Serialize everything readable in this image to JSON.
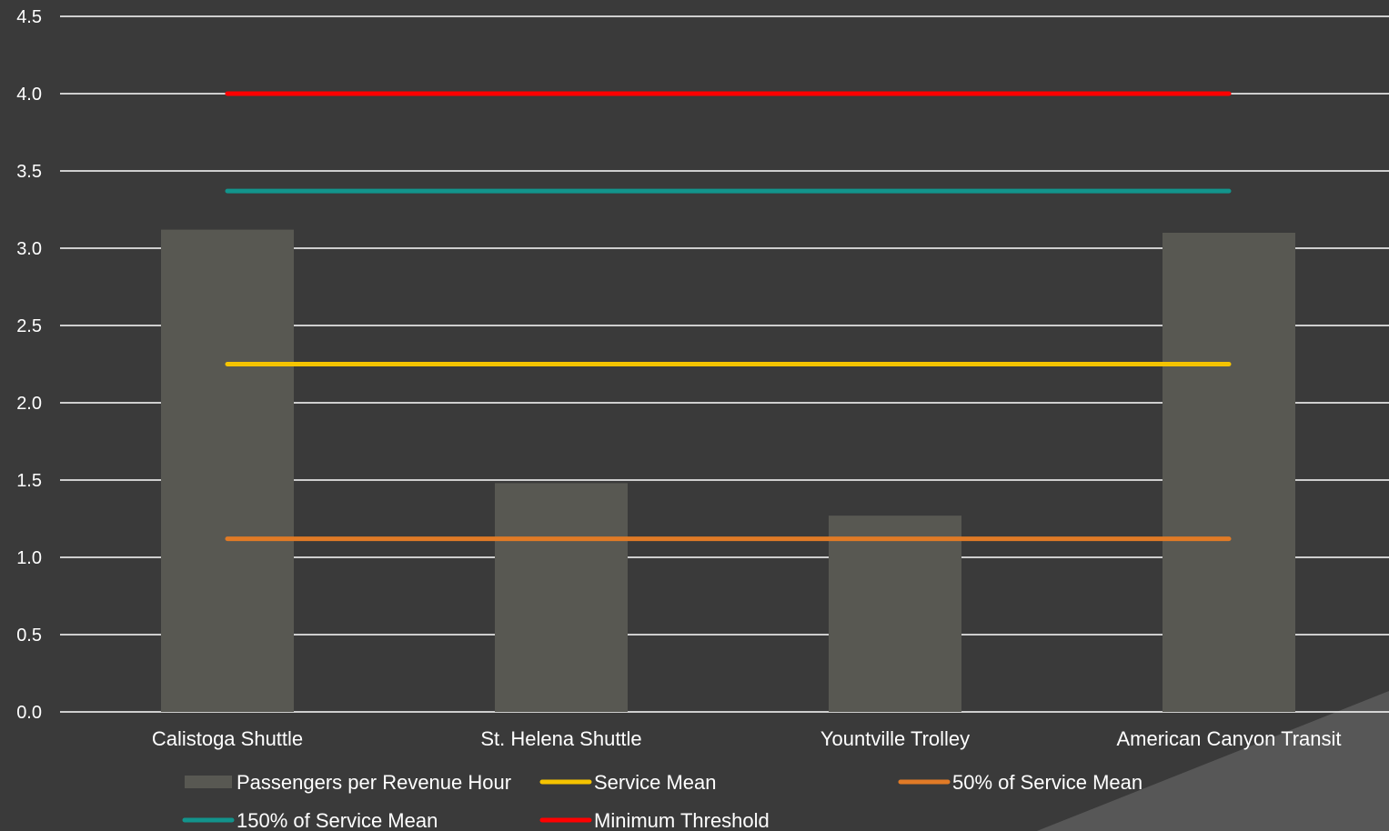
{
  "chart_data": {
    "type": "bar",
    "categories": [
      "Calistoga Shuttle",
      "St. Helena Shuttle",
      "Yountville Trolley",
      "American Canyon Transit"
    ],
    "series": [
      {
        "name": "Passengers per Revenue Hour",
        "kind": "bar",
        "color": "#585852",
        "values": [
          3.12,
          1.48,
          1.27,
          3.1
        ]
      },
      {
        "name": "Service Mean",
        "kind": "line",
        "color": "#f5c400",
        "values": [
          2.25,
          2.25,
          2.25,
          2.25
        ]
      },
      {
        "name": "50% of Service Mean",
        "kind": "line",
        "color": "#e07a26",
        "values": [
          1.12,
          1.12,
          1.12,
          1.12
        ]
      },
      {
        "name": "150% of Service Mean",
        "kind": "line",
        "color": "#12948c",
        "values": [
          3.37,
          3.37,
          3.37,
          3.37
        ]
      },
      {
        "name": "Minimum Threshold",
        "kind": "line",
        "color": "#ff0000",
        "values": [
          4.0,
          4.0,
          4.0,
          4.0
        ]
      }
    ],
    "yticks": [
      "0.0",
      "0.5",
      "1.0",
      "1.5",
      "2.0",
      "2.5",
      "3.0",
      "3.5",
      "4.0",
      "4.5"
    ],
    "ylim": [
      0,
      4.5
    ],
    "grid": true,
    "legend_placement": "bottom",
    "colors": {
      "background": "#3a3a3a",
      "grid": "#ffffff",
      "text": "#ffffff",
      "corner_accent": "#575757"
    }
  }
}
